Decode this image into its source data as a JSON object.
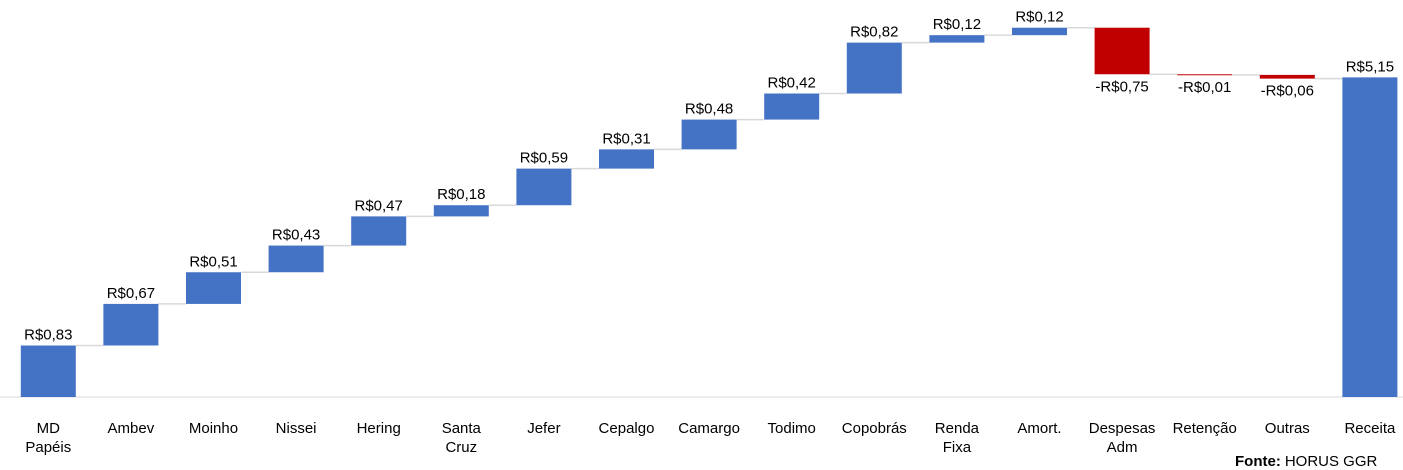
{
  "chart_data": {
    "type": "waterfall",
    "categories": [
      "MD Papéis",
      "Ambev",
      "Moinho",
      "Nissei",
      "Hering",
      "Santa Cruz",
      "Jefer",
      "Cepalgo",
      "Camargo",
      "Todimo",
      "Copobrás",
      "Renda Fixa",
      "Amort.",
      "Despesas Adm",
      "Retenção",
      "Outras",
      "Receita"
    ],
    "values": [
      0.83,
      0.67,
      0.51,
      0.43,
      0.47,
      0.18,
      0.59,
      0.31,
      0.48,
      0.42,
      0.82,
      0.12,
      0.12,
      -0.75,
      -0.01,
      -0.06,
      5.15
    ],
    "value_labels": [
      "R$0,83",
      "R$0,67",
      "R$0,51",
      "R$0,43",
      "R$0,47",
      "R$0,18",
      "R$0,59",
      "R$0,31",
      "R$0,48",
      "R$0,42",
      "R$0,82",
      "R$0,12",
      "R$0,12",
      "-R$0,75",
      "-R$0,01",
      "-R$0,06",
      "R$5,15"
    ],
    "measure": [
      "relative",
      "relative",
      "relative",
      "relative",
      "relative",
      "relative",
      "relative",
      "relative",
      "relative",
      "relative",
      "relative",
      "relative",
      "relative",
      "relative",
      "relative",
      "relative",
      "total"
    ],
    "colors": {
      "increase": "#4472c4",
      "decrease": "#c00000",
      "total": "#4472c4"
    },
    "ylim": [
      0,
      6.3
    ],
    "source_label": "Fonte:",
    "source": "HORUS GGR"
  }
}
